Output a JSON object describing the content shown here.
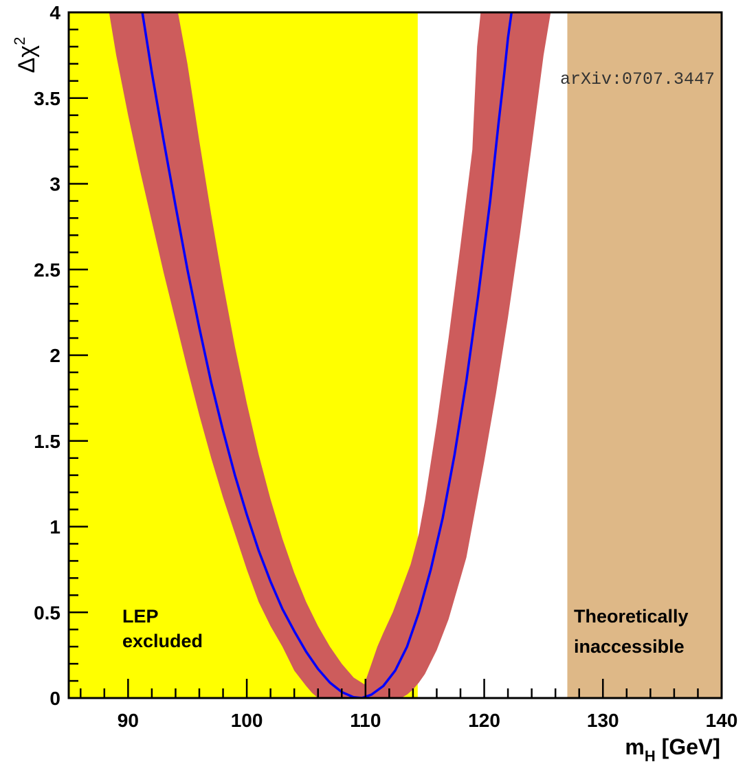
{
  "chart_data": {
    "type": "line",
    "xlabel": "m",
    "xlabel_sub": "H",
    "xlabel_unit": " [GeV]",
    "ylabel": "Δχ",
    "ylabel_sup": "2",
    "xlim": [
      85,
      140
    ],
    "ylim": [
      0,
      4
    ],
    "x_ticks": [
      90,
      100,
      110,
      120,
      130,
      140
    ],
    "y_ticks": [
      0,
      0.5,
      1,
      1.5,
      2,
      2.5,
      3,
      3.5,
      4
    ],
    "watermark": "arXiv:0707.3447",
    "regions": [
      {
        "name": "lep-excluded",
        "label_lines": [
          "LEP",
          "excluded"
        ],
        "x_range": [
          85,
          114.4
        ],
        "color": "#ffff00"
      },
      {
        "name": "theoretically-inaccessible",
        "label_lines": [
          "Theoretically",
          "inaccessible"
        ],
        "x_range": [
          127,
          140
        ],
        "color": "#deb887"
      }
    ],
    "series": [
      {
        "role": "central",
        "color": "#0000ff",
        "x": [
          91.2,
          92,
          93,
          94,
          95,
          96,
          97,
          98,
          99,
          100,
          101,
          102,
          103,
          104,
          105,
          106,
          107,
          108,
          109,
          109.7,
          110.5,
          111.5,
          112.5,
          113.5,
          114.5,
          115.5,
          116.5,
          117.5,
          118.5,
          119.5,
          120.5,
          121.2,
          121.7,
          122.0,
          122.3
        ],
        "y": [
          4.0,
          3.65,
          3.25,
          2.87,
          2.5,
          2.16,
          1.84,
          1.56,
          1.3,
          1.07,
          0.86,
          0.68,
          0.52,
          0.39,
          0.27,
          0.17,
          0.09,
          0.035,
          0.005,
          0.0,
          0.02,
          0.07,
          0.16,
          0.3,
          0.5,
          0.75,
          1.05,
          1.42,
          1.85,
          2.35,
          2.9,
          3.35,
          3.65,
          3.85,
          4.0
        ]
      },
      {
        "role": "band-upper",
        "color": "#cd5c5c",
        "x": [
          94.2,
          95,
          96,
          97,
          98,
          99,
          100,
          101,
          102,
          103,
          104,
          105,
          106,
          107,
          108,
          109,
          109.9,
          110.5,
          111.0,
          111.5,
          112.3,
          113.0,
          113.8,
          114.5,
          115.0,
          116,
          117,
          118,
          119,
          119.2,
          119.4,
          119.7
        ],
        "y": [
          4.0,
          3.7,
          3.25,
          2.82,
          2.42,
          2.05,
          1.72,
          1.42,
          1.16,
          0.93,
          0.73,
          0.56,
          0.42,
          0.3,
          0.2,
          0.12,
          0.08,
          0.2,
          0.3,
          0.38,
          0.5,
          0.63,
          0.78,
          0.96,
          1.15,
          1.6,
          2.1,
          2.64,
          3.2,
          3.5,
          3.8,
          4.0
        ]
      },
      {
        "role": "band-lower",
        "color": "#cd5c5c",
        "x": [
          88.4,
          89,
          90,
          91,
          92,
          93,
          94,
          95,
          96,
          97,
          98,
          99,
          100,
          101,
          102,
          103,
          104,
          105,
          105.5,
          106,
          107,
          108,
          109,
          110,
          111,
          112,
          113,
          113.5,
          114,
          114.5,
          115,
          116,
          117,
          118,
          118.5,
          120,
          121,
          122,
          123,
          124,
          125,
          125.6
        ],
        "y": [
          4.0,
          3.75,
          3.4,
          3.08,
          2.78,
          2.48,
          2.2,
          1.92,
          1.65,
          1.4,
          1.17,
          0.96,
          0.75,
          0.56,
          0.42,
          0.3,
          0.16,
          0.07,
          0.03,
          0.0,
          0.0,
          0.0,
          0.0,
          0.0,
          0.0,
          0.0,
          0.0,
          0.02,
          0.05,
          0.09,
          0.14,
          0.28,
          0.46,
          0.7,
          0.82,
          1.38,
          1.78,
          2.22,
          2.7,
          3.22,
          3.75,
          4.0
        ]
      }
    ]
  }
}
